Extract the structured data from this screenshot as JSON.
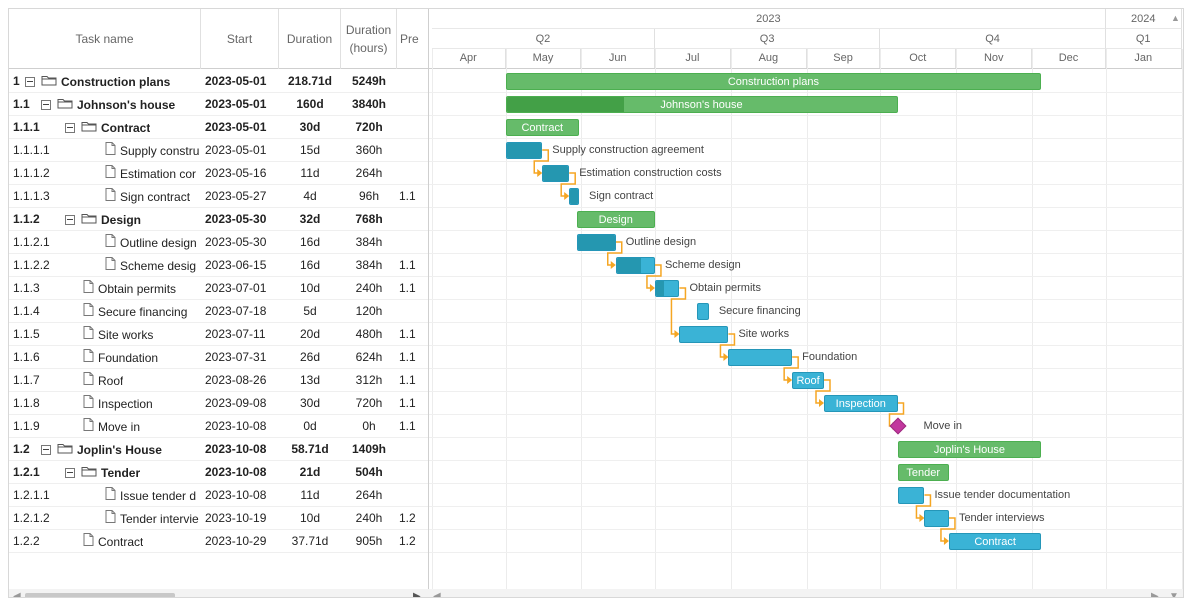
{
  "columns": {
    "task_name": "Task name",
    "start": "Start",
    "duration": "Duration",
    "duration_hours_line1": "Duration",
    "duration_hours_line2": "(hours)",
    "predecessors": "Pre"
  },
  "timeline": {
    "years": [
      "2023",
      "2024"
    ],
    "quarters": [
      "Q2",
      "Q3",
      "Q4",
      "Q1"
    ],
    "months": [
      "Apr",
      "May",
      "Jun",
      "Jul",
      "Aug",
      "Sep",
      "Oct",
      "Nov",
      "Dec",
      "Jan"
    ]
  },
  "rows": [
    {
      "wbs": "1",
      "name": "Construction plans",
      "start": "2023-05-01",
      "duration": "218.71d",
      "hours": "5249h",
      "pred": "",
      "kind": "summary",
      "level": 0,
      "start_day": 30,
      "dur_days": 218.71,
      "progress": 0,
      "label_inside": "Construction plans",
      "label_outside": ""
    },
    {
      "wbs": "1.1",
      "name": "Johnson's house",
      "start": "2023-05-01",
      "duration": "160d",
      "hours": "3840h",
      "pred": "",
      "kind": "summary",
      "level": 1,
      "start_day": 30,
      "dur_days": 160,
      "progress": 0.3,
      "label_inside": "Johnson's house",
      "label_outside": ""
    },
    {
      "wbs": "1.1.1",
      "name": "Contract",
      "start": "2023-05-01",
      "duration": "30d",
      "hours": "720h",
      "pred": "",
      "kind": "summary",
      "level": 2,
      "start_day": 30,
      "dur_days": 30,
      "progress": 0,
      "label_inside": "Contract",
      "label_outside": ""
    },
    {
      "wbs": "1.1.1.1",
      "name": "Supply construction agreement",
      "name_shown": "Supply constru",
      "start": "2023-05-01",
      "duration": "15d",
      "hours": "360h",
      "pred": "",
      "kind": "task",
      "level": 3,
      "start_day": 30,
      "dur_days": 15,
      "progress": 1,
      "label_inside": "",
      "label_outside": "Supply construction agreement"
    },
    {
      "wbs": "1.1.1.2",
      "name": "Estimation construction costs",
      "name_shown": "Estimation cor",
      "start": "2023-05-16",
      "duration": "11d",
      "hours": "264h",
      "pred": "",
      "kind": "task",
      "level": 3,
      "start_day": 45,
      "dur_days": 11,
      "progress": 1,
      "label_inside": "",
      "label_outside": "Estimation construction costs"
    },
    {
      "wbs": "1.1.1.3",
      "name": "Sign contract",
      "name_shown": "Sign contract",
      "start": "2023-05-27",
      "duration": "4d",
      "hours": "96h",
      "pred": "1.1",
      "kind": "task",
      "level": 3,
      "start_day": 56,
      "dur_days": 4,
      "progress": 1,
      "label_inside": "",
      "label_outside": "Sign contract"
    },
    {
      "wbs": "1.1.2",
      "name": "Design",
      "start": "2023-05-30",
      "duration": "32d",
      "hours": "768h",
      "pred": "",
      "kind": "summary",
      "level": 2,
      "start_day": 59,
      "dur_days": 32,
      "progress": 0,
      "label_inside": "Design",
      "label_outside": ""
    },
    {
      "wbs": "1.1.2.1",
      "name": "Outline design",
      "name_shown": "Outline design",
      "start": "2023-05-30",
      "duration": "16d",
      "hours": "384h",
      "pred": "",
      "kind": "task",
      "level": 3,
      "start_day": 59,
      "dur_days": 16,
      "progress": 1,
      "label_inside": "",
      "label_outside": "Outline design"
    },
    {
      "wbs": "1.1.2.2",
      "name": "Scheme design",
      "name_shown": "Scheme desig",
      "start": "2023-06-15",
      "duration": "16d",
      "hours": "384h",
      "pred": "1.1",
      "kind": "task",
      "level": 3,
      "start_day": 75,
      "dur_days": 16,
      "progress": 0.65,
      "label_inside": "",
      "label_outside": "Scheme design"
    },
    {
      "wbs": "1.1.3",
      "name": "Obtain permits",
      "name_shown": "Obtain permits",
      "start": "2023-07-01",
      "duration": "10d",
      "hours": "240h",
      "pred": "1.1",
      "kind": "task",
      "level": 2,
      "start_day": 91,
      "dur_days": 10,
      "progress": 0.35,
      "label_inside": "",
      "label_outside": "Obtain permits"
    },
    {
      "wbs": "1.1.4",
      "name": "Secure financing",
      "name_shown": "Secure financing",
      "start": "2023-07-18",
      "duration": "5d",
      "hours": "120h",
      "pred": "",
      "kind": "task",
      "level": 2,
      "start_day": 108,
      "dur_days": 5,
      "progress": 0,
      "label_inside": "",
      "label_outside": "Secure financing"
    },
    {
      "wbs": "1.1.5",
      "name": "Site works",
      "name_shown": "Site works",
      "start": "2023-07-11",
      "duration": "20d",
      "hours": "480h",
      "pred": "1.1",
      "kind": "task",
      "level": 2,
      "start_day": 101,
      "dur_days": 20,
      "progress": 0,
      "label_inside": "",
      "label_outside": "Site works"
    },
    {
      "wbs": "1.1.6",
      "name": "Foundation",
      "name_shown": "Foundation",
      "start": "2023-07-31",
      "duration": "26d",
      "hours": "624h",
      "pred": "1.1",
      "kind": "task",
      "level": 2,
      "start_day": 121,
      "dur_days": 26,
      "progress": 0,
      "label_inside": "",
      "label_outside": "Foundation"
    },
    {
      "wbs": "1.1.7",
      "name": "Roof",
      "name_shown": "Roof",
      "start": "2023-08-26",
      "duration": "13d",
      "hours": "312h",
      "pred": "1.1",
      "kind": "task",
      "level": 2,
      "start_day": 147,
      "dur_days": 13,
      "progress": 0,
      "label_inside": "Roof",
      "label_outside": ""
    },
    {
      "wbs": "1.1.8",
      "name": "Inspection",
      "name_shown": "Inspection",
      "start": "2023-09-08",
      "duration": "30d",
      "hours": "720h",
      "pred": "1.1",
      "kind": "task",
      "level": 2,
      "start_day": 160,
      "dur_days": 30,
      "progress": 0,
      "label_inside": "Inspection",
      "label_outside": ""
    },
    {
      "wbs": "1.1.9",
      "name": "Move in",
      "name_shown": "Move in",
      "start": "2023-10-08",
      "duration": "0d",
      "hours": "0h",
      "pred": "1.1",
      "kind": "milestone",
      "level": 2,
      "start_day": 190,
      "dur_days": 0,
      "progress": 0,
      "label_inside": "",
      "label_outside": "Move in"
    },
    {
      "wbs": "1.2",
      "name": "Joplin's House",
      "start": "2023-10-08",
      "duration": "58.71d",
      "hours": "1409h",
      "pred": "",
      "kind": "summary",
      "level": 1,
      "start_day": 190,
      "dur_days": 58.71,
      "progress": 0,
      "label_inside": "Joplin's House",
      "label_outside": ""
    },
    {
      "wbs": "1.2.1",
      "name": "Tender",
      "start": "2023-10-08",
      "duration": "21d",
      "hours": "504h",
      "pred": "",
      "kind": "summary",
      "level": 2,
      "start_day": 190,
      "dur_days": 21,
      "progress": 0,
      "label_inside": "Tender",
      "label_outside": ""
    },
    {
      "wbs": "1.2.1.1",
      "name": "Issue tender documentation",
      "name_shown": "Issue tender d",
      "start": "2023-10-08",
      "duration": "11d",
      "hours": "264h",
      "pred": "",
      "kind": "task",
      "level": 3,
      "start_day": 190,
      "dur_days": 11,
      "progress": 0,
      "label_inside": "",
      "label_outside": "Issue tender documentation"
    },
    {
      "wbs": "1.2.1.2",
      "name": "Tender interviews",
      "name_shown": "Tender intervie",
      "start": "2023-10-19",
      "duration": "10d",
      "hours": "240h",
      "pred": "1.2",
      "kind": "task",
      "level": 3,
      "start_day": 201,
      "dur_days": 10,
      "progress": 0,
      "label_inside": "",
      "label_outside": "Tender interviews"
    },
    {
      "wbs": "1.2.2",
      "name": "Contract",
      "name_shown": "Contract",
      "start": "2023-10-29",
      "duration": "37.71d",
      "hours": "905h",
      "pred": "1.2",
      "kind": "task",
      "level": 2,
      "start_day": 211,
      "dur_days": 37.71,
      "progress": 0,
      "label_inside": "Contract",
      "label_outside": ""
    }
  ],
  "dependencies": [
    [
      3,
      4
    ],
    [
      4,
      5
    ],
    [
      7,
      8
    ],
    [
      8,
      9
    ],
    [
      9,
      11
    ],
    [
      11,
      12
    ],
    [
      12,
      13
    ],
    [
      13,
      14
    ],
    [
      14,
      15
    ],
    [
      18,
      19
    ],
    [
      19,
      20
    ]
  ],
  "icons": {
    "folder": "folder-icon",
    "file": "file-icon",
    "collapse": "collapse-icon"
  },
  "colors": {
    "summary": "#66bb6a",
    "summary_progress": "#43a047",
    "task": "#3ab3d6",
    "task_progress": "#2597b0",
    "milestone": "#c2379e",
    "link": "#f5a623"
  }
}
